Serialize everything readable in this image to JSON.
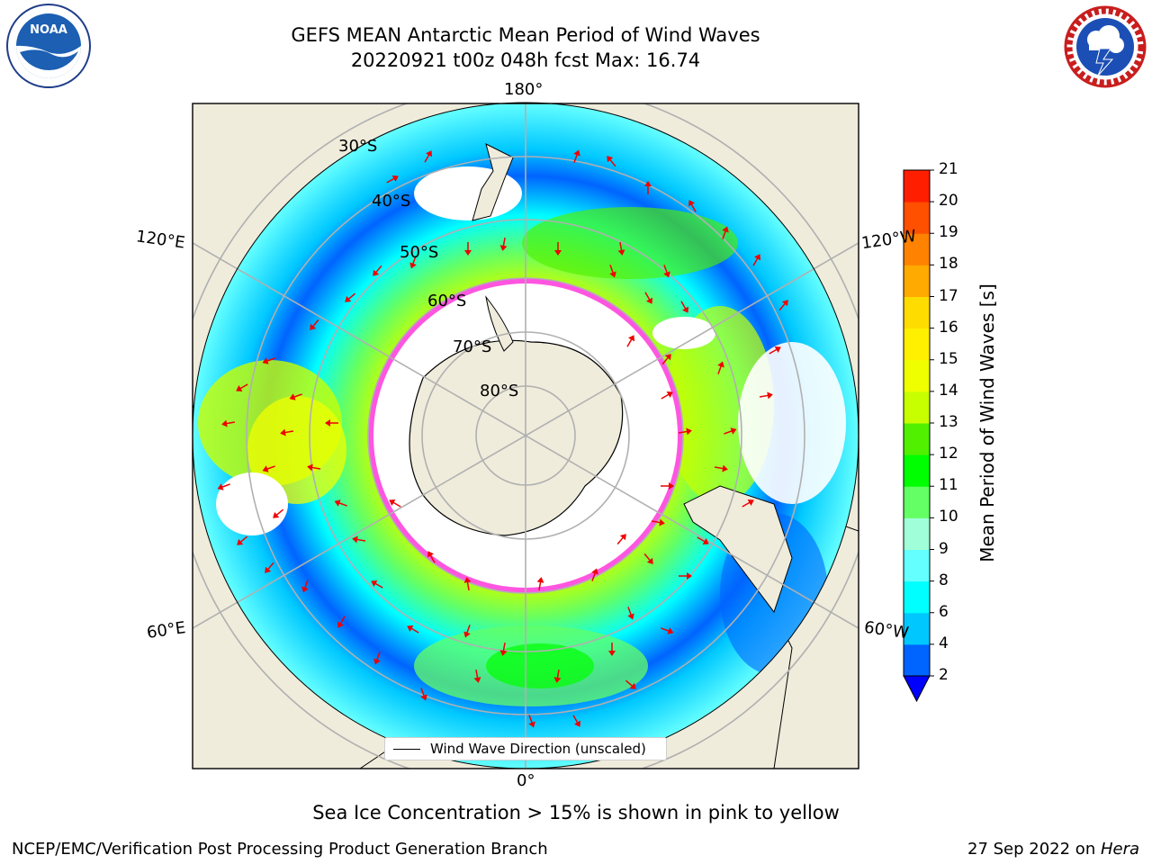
{
  "header": {
    "title_line1": "GEFS MEAN Antarctic Mean Period of Wind Waves",
    "title_line2": "20220921 t00z 048h fcst   Max: 16.74"
  },
  "logos": {
    "left": {
      "text": "NOAA",
      "ring_text": "NATIONAL OCEANIC AND ATMOSPHERIC ADMINISTRATION · U.S. DEPARTMENT OF COMMERCE"
    },
    "right": {
      "ring_text": "NATIONAL WEATHER SERVICE"
    }
  },
  "map": {
    "lon_labels": {
      "top": "180°",
      "bottom": "0°",
      "upper_left": "120°E",
      "upper_right": "120°W",
      "lower_left": "60°E",
      "lower_right": "60°W"
    },
    "lat_labels": [
      "30°S",
      "40°S",
      "50°S",
      "60°S",
      "70°S",
      "80°S"
    ],
    "legend": "Wind Wave Direction (unscaled)",
    "colors": {
      "land": "#efecdc",
      "ocean_white": "#ffffff",
      "sea_ice_pink": "#ff55e0",
      "arrow": "#ee0000",
      "grid": "#b0b0b0"
    }
  },
  "colorbar": {
    "label": "Mean Period of Wind Waves [s]",
    "ticks": [
      "2",
      "4",
      "6",
      "8",
      "9",
      "10",
      "11",
      "12",
      "13",
      "14",
      "15",
      "16",
      "17",
      "18",
      "19",
      "20",
      "21"
    ],
    "colors": [
      "#0064ff",
      "#00c8ff",
      "#00ffff",
      "#64ffff",
      "#a0ffd8",
      "#64ff64",
      "#00ff00",
      "#50f000",
      "#c8ff00",
      "#f0ff00",
      "#fff000",
      "#ffdc00",
      "#ffaa00",
      "#ff8200",
      "#ff5000",
      "#ff1e00"
    ],
    "under_color": "#0000ff"
  },
  "caption": "Sea Ice Concentration > 15% is shown in pink to yellow",
  "footer": {
    "left": "NCEP/EMC/Verification Post Processing Product Generation Branch",
    "right_date": "27 Sep 2022 on ",
    "right_machine": "Hera"
  }
}
